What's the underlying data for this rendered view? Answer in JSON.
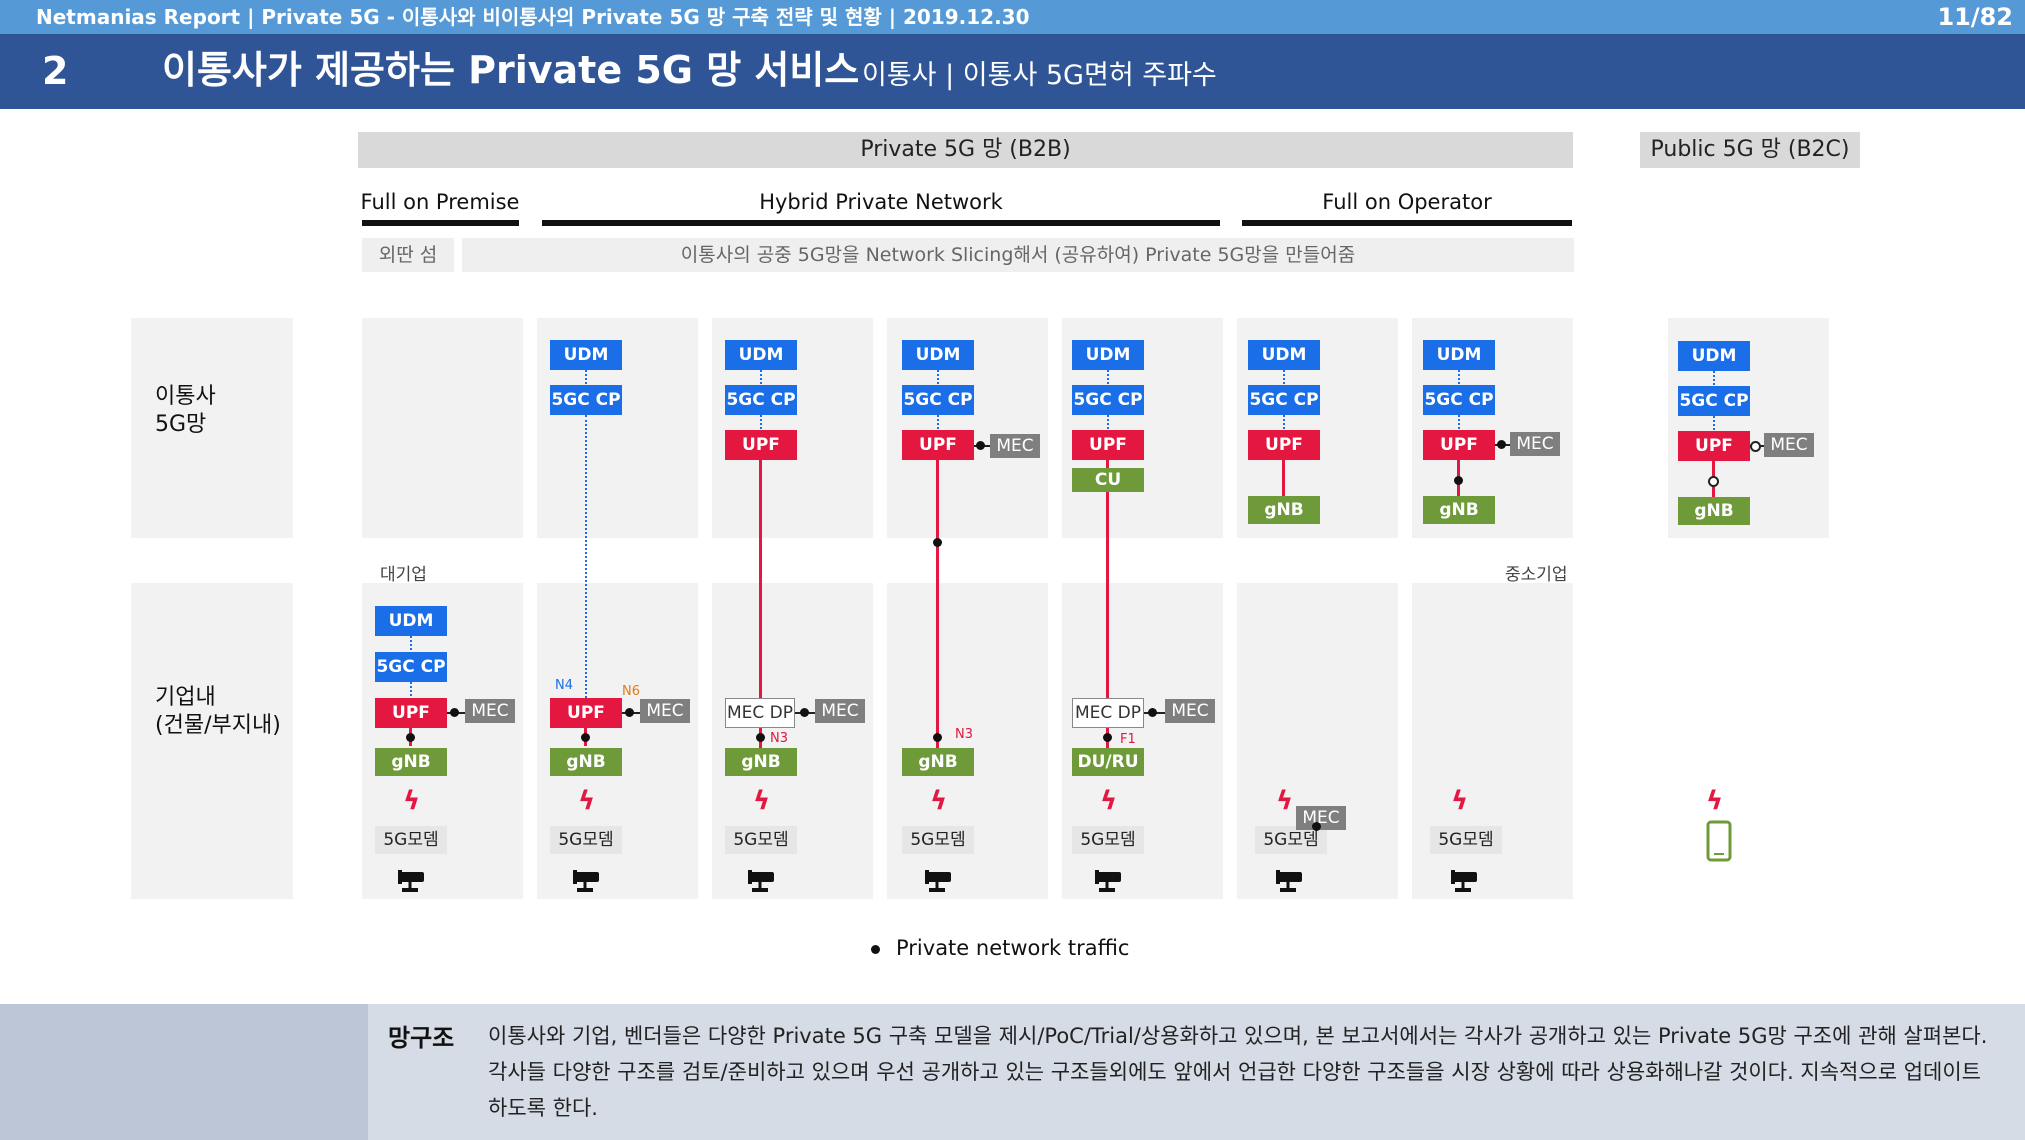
{
  "header": {
    "report_title": "Netmanias Report | Private 5G - 이통사와 비이통사의 Private 5G 망 구축 전략 및 현황  | 2019.12.30",
    "page": "11/82",
    "section_number": "2",
    "title": "이통사가 제공하는 Private 5G 망 서비스",
    "subtitle": "이통사 | 이통사 5G면허 주파수"
  },
  "top_headers": {
    "private": "Private 5G 망 (B2B)",
    "public": "Public 5G 망 (B2C)"
  },
  "categories": {
    "full_premise": "Full on Premise",
    "hybrid": "Hybrid Private Network",
    "full_operator": "Full on Operator"
  },
  "notes": {
    "island": "외딴 섬",
    "slicing": "이통사의 공중 5G망을 Network Slicing해서 (공유하여) Private 5G망을 만들어줌"
  },
  "rows": {
    "operator": "이통사\n5G망",
    "operator_l1": "이통사",
    "operator_l2": "5G망",
    "enterprise_l1": "기업내",
    "enterprise_l2": "(건물/부지내)"
  },
  "size_labels": {
    "large": "대기업",
    "small": "중소기업"
  },
  "nodes": {
    "udm": "UDM",
    "cp": "5GC CP",
    "upf": "UPF",
    "gnb": "gNB",
    "mec": "MEC",
    "mecdp": "MEC DP",
    "cu": "CU",
    "duru": "DU/RU",
    "modem": "5G모뎀"
  },
  "interfaces": {
    "n4": "N4",
    "n6": "N6",
    "n3": "N3",
    "f1": "F1"
  },
  "legend": "Private network traffic",
  "footer": {
    "label": "망구조",
    "text": "이통사와 기업, 벤더들은 다양한 Private 5G 구축 모델을 제시/PoC/Trial/상용화하고 있으며, 본 보고서에서는 각사가 공개하고 있는 Private 5G망 구조에 관해 살펴본다. 각사들 다양한 구조를 검토/준비하고 있으며 우선 공개하고 있는 구조들외에도 앞에서 언급한 다양한 구조들을 시장 상황에 따라 상용화해나갈 것이다. 지속적으로 업데이트하도록 한다."
  },
  "colors": {
    "blue": "#1a6fe8",
    "red": "#e3173f",
    "green": "#6e9a39",
    "gray": "#7f7f7f"
  }
}
